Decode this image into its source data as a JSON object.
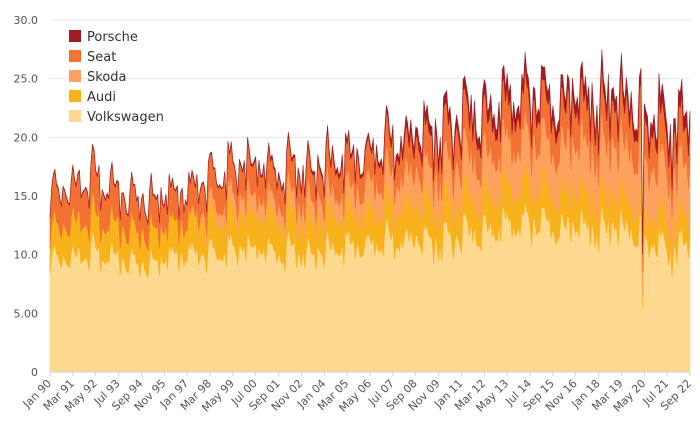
{
  "chart_data": {
    "type": "area",
    "stacked": true,
    "title": "",
    "xlabel": "",
    "ylabel": "",
    "ylim": [
      0,
      30
    ],
    "y_ticks": [
      0,
      5,
      10,
      15,
      20,
      25,
      30
    ],
    "y_tick_labels": [
      "0",
      "5.00",
      "10.0",
      "15.0",
      "20.0",
      "25.0",
      "30.0"
    ],
    "x_start": "1990-01",
    "x_end": "2022-09",
    "x_tick_labels": [
      "Jan 90",
      "Mar 91",
      "May 92",
      "Jul 93",
      "Sep 94",
      "Nov 95",
      "Jan 97",
      "Mar 98",
      "May 99",
      "Jul 00",
      "Sep 01",
      "Nov 02",
      "Jan 04",
      "Mar 05",
      "May 06",
      "Jul 07",
      "Sep 08",
      "Nov 09",
      "Jan 11",
      "Mar 12",
      "May 13",
      "Jul 14",
      "Sep 15",
      "Nov 16",
      "Jan 18",
      "Mar 19",
      "May 20",
      "Jul 21",
      "Sep 22"
    ],
    "legend_position": "top-left",
    "series_order_bottom_to_top": [
      "Volkswagen",
      "Audi",
      "Skoda",
      "Seat",
      "Porsche"
    ],
    "series": [
      {
        "name": "Volkswagen",
        "color": "#fdd88f",
        "keypoints_x": [
          "Jan 90",
          "Mar 91",
          "May 92",
          "Jul 93",
          "Sep 94",
          "Nov 95",
          "Jan 97",
          "Mar 98",
          "May 99",
          "Jul 00",
          "Sep 01",
          "Nov 02",
          "Jan 04",
          "Mar 05",
          "May 06",
          "Jul 07",
          "Sep 08",
          "Nov 09",
          "Jan 11",
          "Mar 12",
          "May 13",
          "Jul 14",
          "Sep 15",
          "Nov 16",
          "Jan 18",
          "Mar 19",
          "May 20",
          "Jul 21",
          "Sep 22"
        ],
        "keypoints_y": [
          9.5,
          10.0,
          10.5,
          9.8,
          9.5,
          10.0,
          10.3,
          10.2,
          10.8,
          10.8,
          10.5,
          10.5,
          10.7,
          11.0,
          11.2,
          11.5,
          11.5,
          11.2,
          12.0,
          12.5,
          13.0,
          13.0,
          12.8,
          12.5,
          12.5,
          12.8,
          12.0,
          11.0,
          11.5
        ]
      },
      {
        "name": "Audi",
        "color": "#f8b21b",
        "keypoints_x": [
          "Jan 90",
          "Mar 91",
          "May 92",
          "Jul 93",
          "Sep 94",
          "Nov 95",
          "Jan 97",
          "Mar 98",
          "May 99",
          "Jul 00",
          "Sep 01",
          "Nov 02",
          "Jan 04",
          "Mar 05",
          "May 06",
          "Jul 07",
          "Sep 08",
          "Nov 09",
          "Jan 11",
          "Mar 12",
          "May 13",
          "Jul 14",
          "Sep 15",
          "Nov 16",
          "Jan 18",
          "Mar 19",
          "May 20",
          "Jul 21",
          "Sep 22"
        ],
        "keypoints_y": [
          2.5,
          3.0,
          3.0,
          2.8,
          2.8,
          2.8,
          2.8,
          3.0,
          3.0,
          3.0,
          3.0,
          2.8,
          2.8,
          2.8,
          2.8,
          3.0,
          3.0,
          3.0,
          3.0,
          3.0,
          3.2,
          3.2,
          3.0,
          3.0,
          2.8,
          2.8,
          2.5,
          2.5,
          2.5
        ]
      },
      {
        "name": "Skoda",
        "color": "#fca25e",
        "keypoints_x": [
          "Jan 90",
          "Mar 91",
          "May 92",
          "Jul 93",
          "Sep 94",
          "Nov 95",
          "Jan 97",
          "Mar 98",
          "May 99",
          "Jul 00",
          "Sep 01",
          "Nov 02",
          "Jan 04",
          "Mar 05",
          "May 06",
          "Jul 07",
          "Sep 08",
          "Nov 09",
          "Jan 11",
          "Mar 12",
          "May 13",
          "Jul 14",
          "Sep 15",
          "Nov 16",
          "Jan 18",
          "Mar 19",
          "May 20",
          "Jul 21",
          "Sep 22"
        ],
        "keypoints_y": [
          0.0,
          0.0,
          0.0,
          0.0,
          0.0,
          0.0,
          0.0,
          1.0,
          1.5,
          1.5,
          1.5,
          1.8,
          2.0,
          2.0,
          2.5,
          2.5,
          2.8,
          3.0,
          3.5,
          3.5,
          3.8,
          4.0,
          4.0,
          4.2,
          4.2,
          4.5,
          4.5,
          4.5,
          4.5
        ]
      },
      {
        "name": "Seat",
        "color": "#f27133",
        "keypoints_x": [
          "Jan 90",
          "Mar 91",
          "May 92",
          "Jul 93",
          "Sep 94",
          "Nov 95",
          "Jan 97",
          "Mar 98",
          "May 99",
          "Jul 00",
          "Sep 01",
          "Nov 02",
          "Jan 04",
          "Mar 05",
          "May 06",
          "Jul 07",
          "Sep 08",
          "Nov 09",
          "Jan 11",
          "Mar 12",
          "May 13",
          "Jul 14",
          "Sep 15",
          "Nov 16",
          "Jan 18",
          "Mar 19",
          "May 20",
          "Jul 21",
          "Sep 22"
        ],
        "keypoints_y": [
          3.0,
          3.0,
          3.5,
          2.8,
          2.8,
          2.5,
          2.5,
          2.5,
          2.5,
          2.5,
          2.5,
          2.5,
          2.5,
          2.5,
          2.5,
          2.5,
          2.5,
          2.8,
          3.0,
          3.0,
          3.0,
          3.0,
          3.0,
          3.2,
          3.2,
          3.2,
          3.2,
          3.2,
          3.2
        ]
      },
      {
        "name": "Porsche",
        "color": "#a31b22",
        "keypoints_x": [
          "Jan 90",
          "Mar 91",
          "May 92",
          "Jul 93",
          "Sep 94",
          "Nov 95",
          "Jan 97",
          "Mar 98",
          "May 99",
          "Jul 00",
          "Sep 01",
          "Nov 02",
          "Jan 04",
          "Mar 05",
          "May 06",
          "Jul 07",
          "Sep 08",
          "Nov 09",
          "Jan 11",
          "Mar 12",
          "May 13",
          "Jul 14",
          "Sep 15",
          "Nov 16",
          "Jan 18",
          "Mar 19",
          "May 20",
          "Jul 21",
          "Sep 22"
        ],
        "keypoints_y": [
          0.1,
          0.1,
          0.1,
          0.1,
          0.1,
          0.1,
          0.1,
          0.1,
          0.1,
          0.2,
          0.2,
          0.2,
          0.3,
          0.3,
          0.3,
          0.5,
          0.8,
          0.8,
          0.8,
          1.0,
          1.0,
          1.0,
          1.0,
          1.0,
          1.0,
          1.0,
          1.0,
          1.2,
          1.2
        ]
      }
    ]
  }
}
